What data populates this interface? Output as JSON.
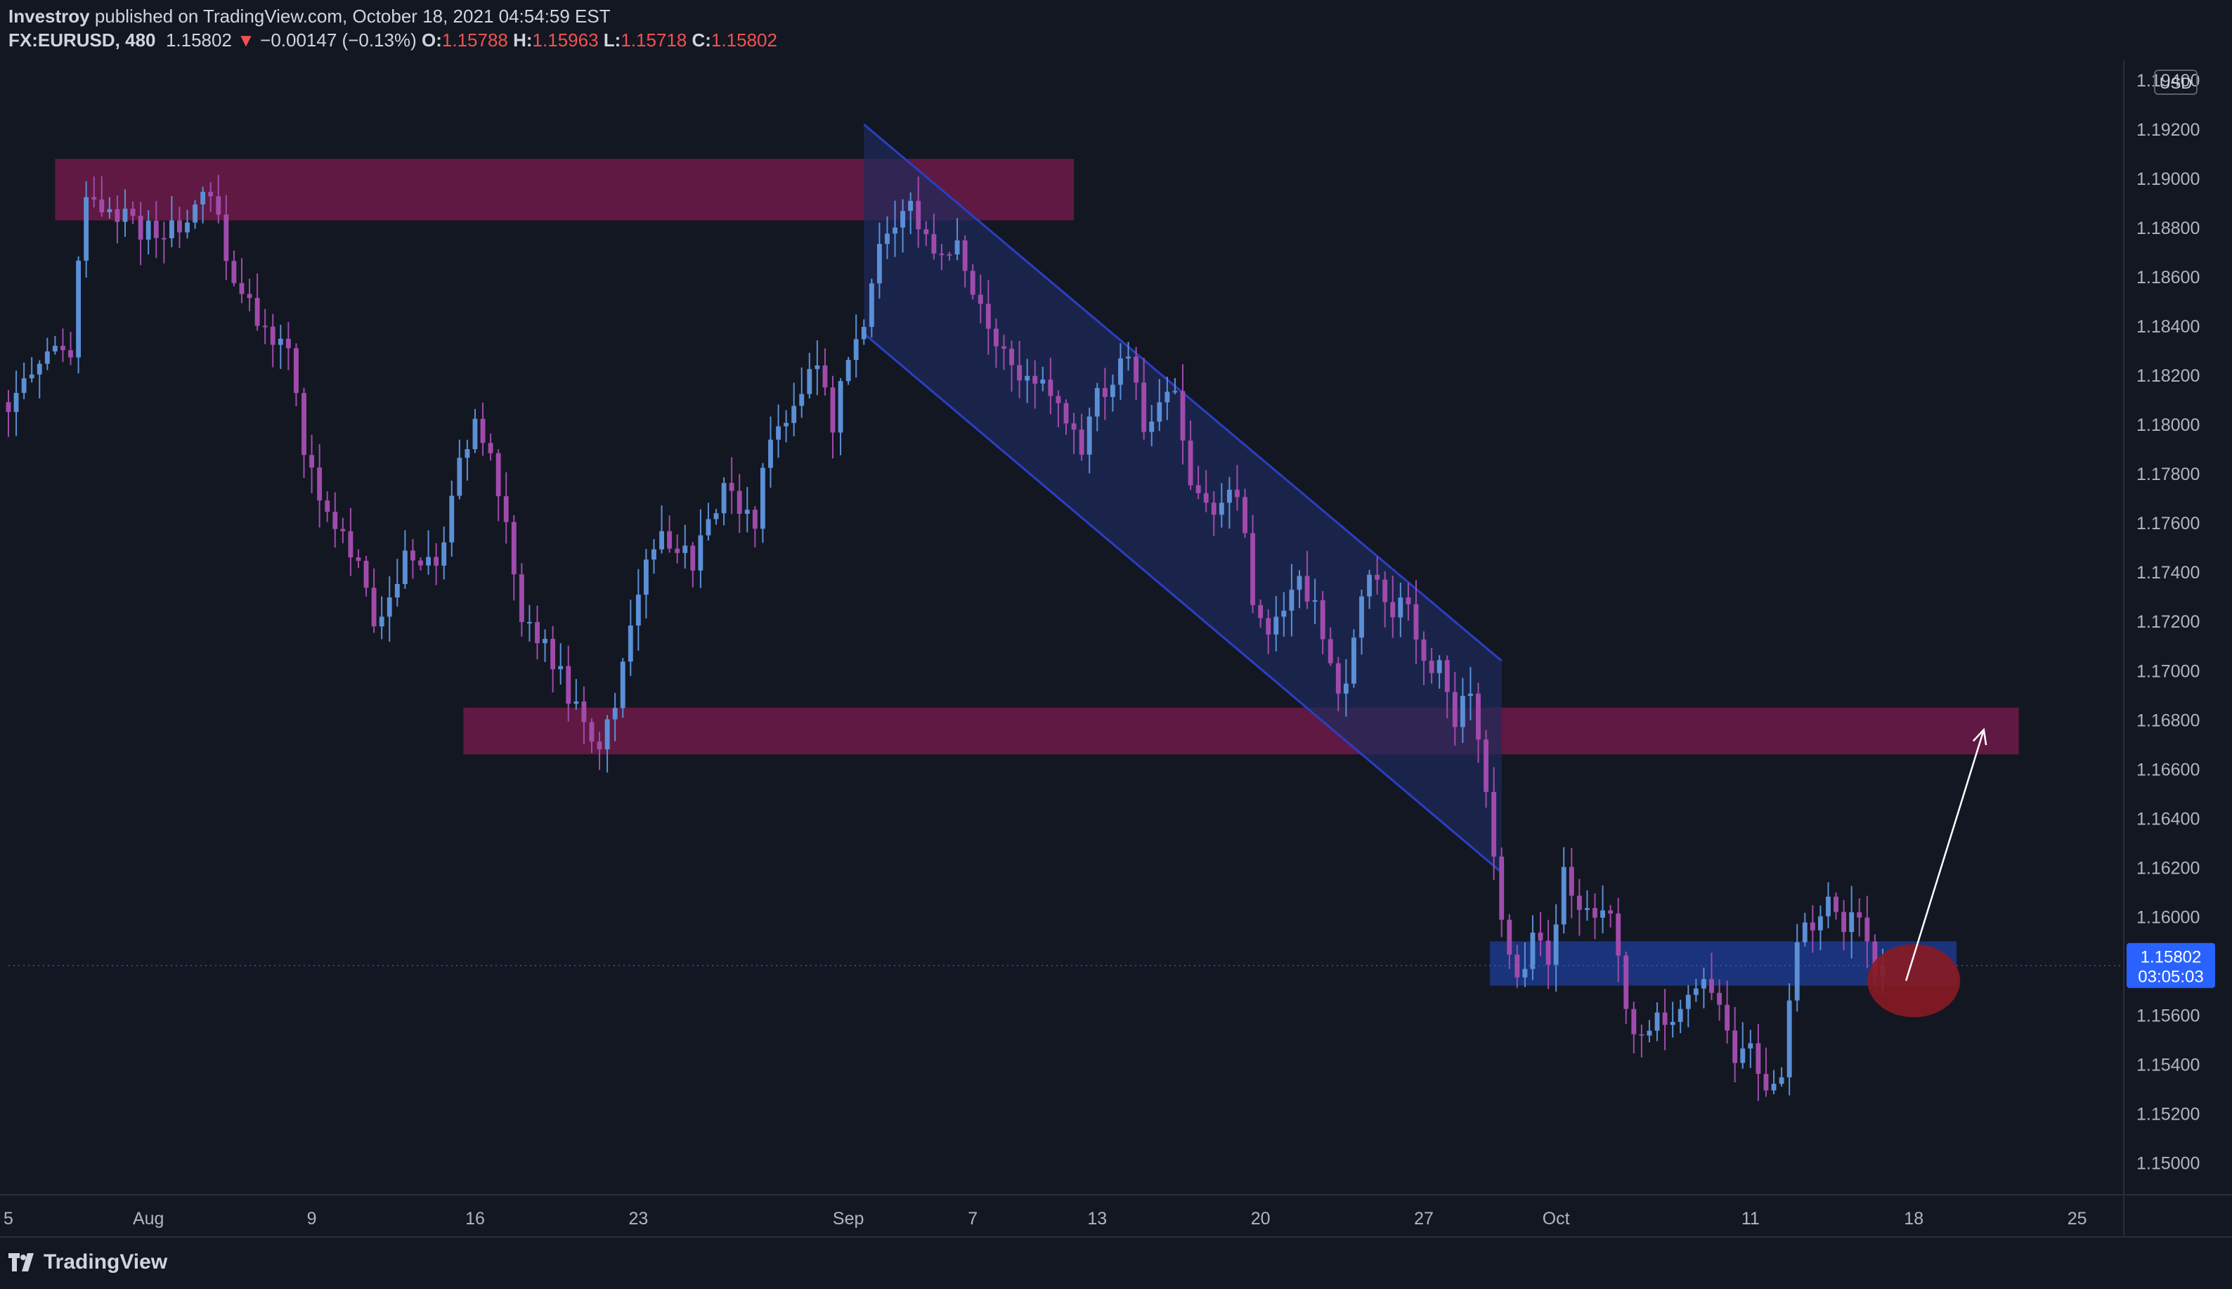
{
  "header": {
    "publisher": "Investroy",
    "published_text": "published on TradingView.com, October 18, 2021 04:54:59 EST",
    "symbol": "FX:EURUSD, 480",
    "last_price": "1.15802",
    "change_arrow": "▼",
    "change": "−0.00147 (−0.13%)",
    "open_label": "O:",
    "open": "1.15788",
    "high_label": "H:",
    "high": "1.15963",
    "low_label": "L:",
    "low": "1.15718",
    "close_label": "C:",
    "close": "1.15802"
  },
  "footer": {
    "brand": "TradingView",
    "logo_icon": "tradingview-logo-icon"
  },
  "colors": {
    "background": "#131722",
    "up": "#5b8fd6",
    "down": "#a04bab",
    "resistance_zone": "#6e1a48",
    "support_zone": "#1f3d99",
    "channel_fill": "#1e2b5c",
    "channel_line": "#2a3fc4",
    "target_circle": "#8a1a22",
    "price_tag": "#2962ff"
  },
  "chart_data": {
    "type": "candlestick",
    "currency_label": "USD",
    "ylim": [
      1.1487,
      1.1948
    ],
    "xlim": [
      0,
      272
    ],
    "y_ticks": [
      "1.19400",
      "1.19200",
      "1.19000",
      "1.18800",
      "1.18600",
      "1.18400",
      "1.18200",
      "1.18000",
      "1.17800",
      "1.17600",
      "1.17400",
      "1.17200",
      "1.17000",
      "1.16800",
      "1.16600",
      "1.16400",
      "1.16200",
      "1.16000",
      "1.15600",
      "1.15400",
      "1.15200",
      "1.15000"
    ],
    "x_ticks": [
      {
        "label": "5",
        "x": 0
      },
      {
        "label": "Aug",
        "x": 18
      },
      {
        "label": "9",
        "x": 39
      },
      {
        "label": "16",
        "x": 60
      },
      {
        "label": "23",
        "x": 81
      },
      {
        "label": "Sep",
        "x": 108
      },
      {
        "label": "7",
        "x": 124
      },
      {
        "label": "13",
        "x": 140
      },
      {
        "label": "20",
        "x": 161
      },
      {
        "label": "27",
        "x": 182
      },
      {
        "label": "Oct",
        "x": 199
      },
      {
        "label": "11",
        "x": 224
      },
      {
        "label": "18",
        "x": 245
      },
      {
        "label": "25",
        "x": 266
      }
    ],
    "anchors": [
      [
        0,
        1.1808
      ],
      [
        4,
        1.1828
      ],
      [
        8,
        1.183
      ],
      [
        10,
        1.1895
      ],
      [
        14,
        1.1885
      ],
      [
        18,
        1.1878
      ],
      [
        22,
        1.188
      ],
      [
        26,
        1.1893
      ],
      [
        29,
        1.186
      ],
      [
        32,
        1.184
      ],
      [
        36,
        1.1828
      ],
      [
        38,
        1.179
      ],
      [
        40,
        1.1768
      ],
      [
        43,
        1.1755
      ],
      [
        45,
        1.174
      ],
      [
        47,
        1.1718
      ],
      [
        49,
        1.1728
      ],
      [
        51,
        1.1745
      ],
      [
        54,
        1.1742
      ],
      [
        56,
        1.175
      ],
      [
        58,
        1.179
      ],
      [
        60,
        1.18
      ],
      [
        62,
        1.179
      ],
      [
        64,
        1.176
      ],
      [
        66,
        1.172
      ],
      [
        68,
        1.1715
      ],
      [
        70,
        1.1705
      ],
      [
        72,
        1.169
      ],
      [
        74,
        1.1675
      ],
      [
        76,
        1.1672
      ],
      [
        78,
        1.1688
      ],
      [
        80,
        1.172
      ],
      [
        82,
        1.1742
      ],
      [
        84,
        1.1755
      ],
      [
        86,
        1.175
      ],
      [
        88,
        1.1742
      ],
      [
        90,
        1.1765
      ],
      [
        92,
        1.1772
      ],
      [
        94,
        1.1768
      ],
      [
        96,
        1.176
      ],
      [
        98,
        1.1795
      ],
      [
        100,
        1.18
      ],
      [
        102,
        1.1815
      ],
      [
        104,
        1.1828
      ],
      [
        106,
        1.18
      ],
      [
        108,
        1.183
      ],
      [
        110,
        1.184
      ],
      [
        112,
        1.187
      ],
      [
        114,
        1.188
      ],
      [
        116,
        1.1888
      ],
      [
        118,
        1.1878
      ],
      [
        120,
        1.187
      ],
      [
        122,
        1.1872
      ],
      [
        124,
        1.1855
      ],
      [
        126,
        1.184
      ],
      [
        128,
        1.183
      ],
      [
        130,
        1.1818
      ],
      [
        132,
        1.182
      ],
      [
        134,
        1.1815
      ],
      [
        136,
        1.18
      ],
      [
        138,
        1.1792
      ],
      [
        140,
        1.181
      ],
      [
        142,
        1.182
      ],
      [
        144,
        1.183
      ],
      [
        146,
        1.1798
      ],
      [
        148,
        1.1808
      ],
      [
        150,
        1.181
      ],
      [
        152,
        1.178
      ],
      [
        154,
        1.177
      ],
      [
        156,
        1.1764
      ],
      [
        158,
        1.1775
      ],
      [
        160,
        1.173
      ],
      [
        162,
        1.1715
      ],
      [
        164,
        1.1725
      ],
      [
        166,
        1.1736
      ],
      [
        168,
        1.173
      ],
      [
        170,
        1.17
      ],
      [
        172,
        1.169
      ],
      [
        174,
        1.173
      ],
      [
        176,
        1.174
      ],
      [
        178,
        1.1725
      ],
      [
        180,
        1.173
      ],
      [
        182,
        1.1705
      ],
      [
        184,
        1.17
      ],
      [
        186,
        1.168
      ],
      [
        188,
        1.169
      ],
      [
        190,
        1.165
      ],
      [
        192,
        1.16
      ],
      [
        194,
        1.1575
      ],
      [
        196,
        1.1592
      ],
      [
        198,
        1.1582
      ],
      [
        200,
        1.162
      ],
      [
        202,
        1.1605
      ],
      [
        204,
        1.1596
      ],
      [
        206,
        1.16
      ],
      [
        208,
        1.156
      ],
      [
        210,
        1.1552
      ],
      [
        212,
        1.1562
      ],
      [
        214,
        1.1556
      ],
      [
        216,
        1.157
      ],
      [
        218,
        1.1575
      ],
      [
        220,
        1.156
      ],
      [
        222,
        1.1544
      ],
      [
        224,
        1.155
      ],
      [
        226,
        1.153
      ],
      [
        228,
        1.1535
      ],
      [
        230,
        1.1592
      ],
      [
        232,
        1.1598
      ],
      [
        234,
        1.161
      ],
      [
        236,
        1.1595
      ],
      [
        238,
        1.1602
      ],
      [
        240,
        1.1578
      ],
      [
        241,
        1.158
      ]
    ],
    "zones": [
      {
        "name": "resistance-zone-upper",
        "kind": "resistance",
        "x0": 6,
        "x1": 137,
        "y0": 1.1883,
        "y1": 1.1908
      },
      {
        "name": "resistance-zone-middle",
        "kind": "resistance",
        "x0": 58.5,
        "x1": 258.5,
        "y0": 1.1666,
        "y1": 1.1685
      },
      {
        "name": "support-zone",
        "kind": "support",
        "x0": 190.5,
        "x1": 250.5,
        "y0": 1.1572,
        "y1": 1.159
      }
    ],
    "channel": {
      "x0": 110,
      "x1": 192,
      "upper_start": 1.1922,
      "upper_end": 1.1704,
      "lower_start": 1.1837,
      "lower_end": 1.1618
    },
    "target_circle": {
      "x": 245,
      "y": 1.1574
    },
    "arrow": {
      "x0": 244,
      "y0": 1.1574,
      "x1": 254,
      "y1": 1.1676
    },
    "current_price": {
      "value": 1.15802,
      "label": "1.15802",
      "countdown": "03:05:03"
    }
  }
}
